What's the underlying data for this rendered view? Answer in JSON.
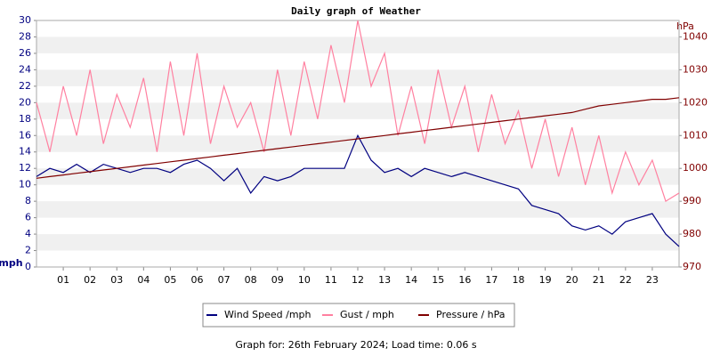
{
  "chart_data": {
    "type": "line",
    "title": "Daily graph of Weather",
    "y_label": "mph",
    "y2_label": "hPa",
    "footer": "Graph for: 26th February 2024; Load time: 0.06 s",
    "x": [
      0,
      0.5,
      1,
      1.5,
      2,
      2.5,
      3,
      3.5,
      4,
      4.5,
      5,
      5.5,
      6,
      6.5,
      7,
      7.5,
      8,
      8.5,
      9,
      9.5,
      10,
      10.5,
      11,
      11.5,
      12,
      12.5,
      13,
      13.5,
      14,
      14.5,
      15,
      15.5,
      16,
      16.5,
      17,
      17.5,
      18,
      18.5,
      19,
      19.5,
      20,
      20.5,
      21,
      21.5,
      22,
      22.5,
      23,
      23.5,
      24
    ],
    "xlim": [
      0,
      24
    ],
    "xticks": [
      {
        "value": 1,
        "label": "01"
      },
      {
        "value": 2,
        "label": "02"
      },
      {
        "value": 3,
        "label": "03"
      },
      {
        "value": 4,
        "label": "04"
      },
      {
        "value": 5,
        "label": "05"
      },
      {
        "value": 6,
        "label": "06"
      },
      {
        "value": 7,
        "label": "07"
      },
      {
        "value": 8,
        "label": "08"
      },
      {
        "value": 9,
        "label": "09"
      },
      10,
      11,
      12,
      13,
      14,
      15,
      16,
      17,
      18,
      19,
      20,
      21,
      22,
      23
    ],
    "ylim": [
      0,
      30
    ],
    "yticks": [
      0,
      2,
      4,
      6,
      8,
      10,
      12,
      14,
      16,
      18,
      20,
      22,
      24,
      26,
      28,
      30
    ],
    "y2lim": [
      970,
      1045
    ],
    "y2ticks": [
      970,
      980,
      990,
      1000,
      1010,
      1020,
      1030,
      1040
    ],
    "grid": true,
    "series": [
      {
        "name": "Wind Speed /mph",
        "color": "#000080",
        "values": [
          11,
          12,
          11.5,
          12.5,
          11.5,
          12.5,
          12,
          11.5,
          12,
          12,
          11.5,
          12.5,
          13,
          12,
          10.5,
          12,
          9,
          11,
          10.5,
          11,
          12,
          12,
          12,
          12,
          16,
          13,
          11.5,
          12,
          11,
          12,
          11.5,
          11,
          11.5,
          11,
          10.5,
          10,
          9.5,
          7.5,
          7,
          6.5,
          5,
          4.5,
          5,
          4,
          5.5,
          6,
          6.5,
          4,
          2.5
        ]
      },
      {
        "name": "Gust / mph",
        "color": "#ff80a0",
        "values": [
          20,
          14,
          22,
          16,
          24,
          15,
          21,
          17,
          23,
          14,
          25,
          16,
          26,
          15,
          22,
          17,
          20,
          14,
          24,
          16,
          25,
          18,
          27,
          20,
          30,
          22,
          26,
          16,
          22,
          15,
          24,
          17,
          22,
          14,
          21,
          15,
          19,
          12,
          18,
          11,
          17,
          10,
          16,
          9,
          14,
          10,
          13,
          8,
          9
        ]
      },
      {
        "name": "Pressure / hPa",
        "color": "#800000",
        "axis": "y2",
        "values": [
          997,
          997.5,
          998,
          998.5,
          999,
          999.5,
          1000,
          1000.5,
          1001,
          1001.5,
          1002,
          1002.5,
          1003,
          1003.5,
          1004,
          1004.5,
          1005,
          1005.5,
          1006,
          1006.5,
          1007,
          1007.5,
          1008,
          1008.5,
          1009,
          1009.5,
          1010,
          1010.5,
          1011,
          1011.5,
          1012,
          1012.5,
          1013,
          1013.5,
          1014,
          1014.5,
          1015,
          1015.5,
          1016,
          1016.5,
          1017,
          1018,
          1019,
          1019.5,
          1020,
          1020.5,
          1021,
          1021,
          1021.5
        ]
      }
    ]
  }
}
